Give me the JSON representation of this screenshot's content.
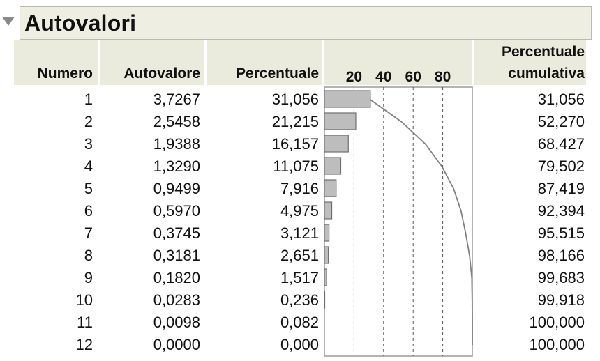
{
  "report": {
    "title": "Autovalori",
    "headers": {
      "numero": "Numero",
      "autovalore": "Autovalore",
      "percentuale": "Percentuale",
      "cumulativa_line1": "Percentuale",
      "cumulativa_line2": "cumulativa"
    },
    "rows": [
      {
        "numero": "1",
        "autovalore": "3,7267",
        "percentuale": "31,056",
        "cumulativa": "31,056"
      },
      {
        "numero": "2",
        "autovalore": "2,5458",
        "percentuale": "21,215",
        "cumulativa": "52,270"
      },
      {
        "numero": "3",
        "autovalore": "1,9388",
        "percentuale": "16,157",
        "cumulativa": "68,427"
      },
      {
        "numero": "4",
        "autovalore": "1,3290",
        "percentuale": "11,075",
        "cumulativa": "79,502"
      },
      {
        "numero": "5",
        "autovalore": "0,9499",
        "percentuale": "7,916",
        "cumulativa": "87,419"
      },
      {
        "numero": "6",
        "autovalore": "0,5970",
        "percentuale": "4,975",
        "cumulativa": "92,394"
      },
      {
        "numero": "7",
        "autovalore": "0,3745",
        "percentuale": "3,121",
        "cumulativa": "95,515"
      },
      {
        "numero": "8",
        "autovalore": "0,3181",
        "percentuale": "2,651",
        "cumulativa": "98,166"
      },
      {
        "numero": "9",
        "autovalore": "0,1820",
        "percentuale": "1,517",
        "cumulativa": "99,683"
      },
      {
        "numero": "10",
        "autovalore": "0,0283",
        "percentuale": "0,236",
        "cumulativa": "99,918"
      },
      {
        "numero": "11",
        "autovalore": "0,0098",
        "percentuale": "0,082",
        "cumulativa": "100,000"
      },
      {
        "numero": "12",
        "autovalore": "0,0000",
        "percentuale": "0,000",
        "cumulativa": "100,000"
      }
    ]
  },
  "colors": {
    "header_bg": "#eaeadd",
    "bar_fill": "#bdbdbd",
    "bar_stroke": "#6e6e6e",
    "curve": "#808080",
    "grid": "#555555"
  },
  "chart_data": {
    "type": "bar",
    "categories": [
      "1",
      "2",
      "3",
      "4",
      "5",
      "6",
      "7",
      "8",
      "9",
      "10",
      "11",
      "12"
    ],
    "series": [
      {
        "values": [
          31.056,
          21.215,
          16.157,
          11.075,
          7.916,
          4.975,
          3.121,
          2.651,
          1.517,
          0.236,
          0.082,
          0.0
        ]
      },
      {
        "values": [
          31.056,
          52.27,
          68.427,
          79.502,
          87.419,
          92.394,
          95.515,
          98.166,
          99.683,
          99.918,
          100.0,
          100.0
        ]
      }
    ],
    "xlim": [
      0,
      100
    ],
    "ticks": [
      20,
      40,
      60,
      80
    ],
    "tick_labels": [
      "20",
      "40",
      "60",
      "80"
    ],
    "grid": true,
    "orientation": "horizontal"
  }
}
